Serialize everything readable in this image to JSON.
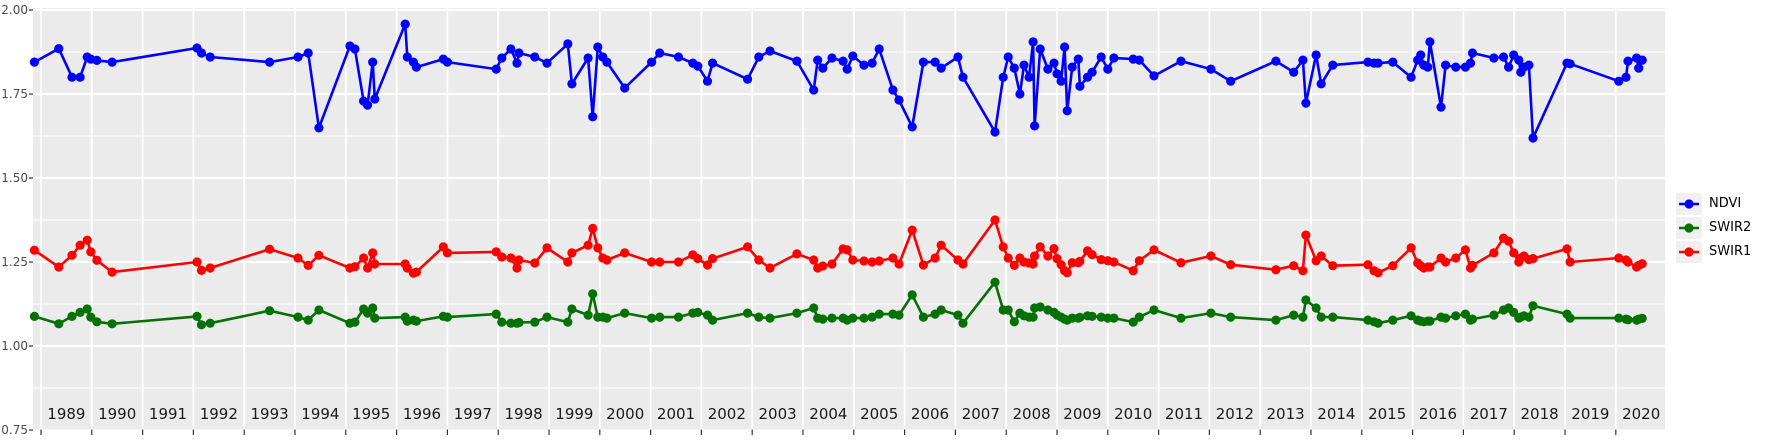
{
  "chart_data": {
    "type": "line",
    "title": "",
    "xlabel": "",
    "ylabel": "",
    "grid": "on",
    "panel_background": "#ebebeb",
    "gridline_color": "#ffffff",
    "legend_position": "right",
    "y_axis": {
      "tick_labels": [
        "2.00",
        "1.75",
        "1.50",
        "1.25",
        "1.00",
        "0.75"
      ],
      "tick_values": [
        2.0,
        1.75,
        1.5,
        1.25,
        1.0,
        0.75
      ],
      "minor_tick_values": [
        1.875,
        1.625,
        1.375,
        1.125,
        0.875
      ],
      "range": [
        0.75,
        2.0
      ]
    },
    "x_axis": {
      "year_labels": [
        "1989",
        "1990",
        "1991",
        "1992",
        "1993",
        "1994",
        "1995",
        "1996",
        "1997",
        "1998",
        "1999",
        "2000",
        "2001",
        "2002",
        "2003",
        "2004",
        "2005",
        "2006",
        "2007",
        "2008",
        "2009",
        "2010",
        "2011",
        "2012",
        "2013",
        "2014",
        "2015",
        "2016",
        "2017",
        "2018",
        "2019",
        "2020"
      ],
      "range": [
        1988.8,
        2021.0
      ]
    },
    "legend": [
      {
        "name": "NDVI",
        "color": "#0000ff"
      },
      {
        "name": "SWIR2",
        "color": "#047104"
      },
      {
        "name": "SWIR1",
        "color": "#ff0000"
      }
    ],
    "x": [
      1988.87,
      1989.35,
      1989.61,
      1989.77,
      1989.91,
      1989.98,
      1990.1,
      1990.4,
      1992.07,
      1992.16,
      1992.33,
      1993.5,
      1994.06,
      1994.26,
      1994.47,
      1995.08,
      1995.18,
      1995.35,
      1995.43,
      1995.53,
      1995.57,
      1996.17,
      1996.21,
      1996.33,
      1996.39,
      1996.92,
      1997.0,
      1997.96,
      1998.07,
      1998.25,
      1998.37,
      1998.41,
      1998.72,
      1998.96,
      1999.37,
      1999.45,
      1999.77,
      1999.86,
      1999.96,
      2000.06,
      2000.14,
      2000.49,
      2001.02,
      2001.18,
      2001.55,
      2001.83,
      2001.93,
      2002.12,
      2002.22,
      2002.91,
      2003.13,
      2003.35,
      2003.88,
      2004.21,
      2004.29,
      2004.39,
      2004.57,
      2004.79,
      2004.87,
      2004.98,
      2005.2,
      2005.36,
      2005.5,
      2005.77,
      2005.89,
      2006.15,
      2006.37,
      2006.6,
      2006.72,
      2007.05,
      2007.15,
      2007.78,
      2007.94,
      2008.04,
      2008.16,
      2008.27,
      2008.35,
      2008.45,
      2008.53,
      2008.56,
      2008.67,
      2008.82,
      2008.94,
      2009.0,
      2009.08,
      2009.15,
      2009.2,
      2009.3,
      2009.42,
      2009.45,
      2009.6,
      2009.69,
      2009.87,
      2010.0,
      2010.12,
      2010.5,
      2010.62,
      2010.91,
      2011.44,
      2012.03,
      2012.42,
      2013.31,
      2013.66,
      2013.84,
      2013.9,
      2014.1,
      2014.2,
      2014.43,
      2015.12,
      2015.24,
      2015.32,
      2015.61,
      2015.97,
      2016.1,
      2016.16,
      2016.22,
      2016.3,
      2016.34,
      2016.56,
      2016.65,
      2016.85,
      2017.04,
      2017.14,
      2017.18,
      2017.6,
      2017.79,
      2017.89,
      2017.99,
      2018.09,
      2018.13,
      2018.19,
      2018.29,
      2018.37,
      2019.04,
      2019.1,
      2020.06,
      2020.2,
      2020.24,
      2020.41,
      2020.45,
      2020.52
    ],
    "series": [
      {
        "name": "NDVI",
        "color": "#0000ff",
        "values": [
          1.845,
          1.885,
          1.8,
          1.8,
          1.86,
          1.854,
          1.85,
          1.845,
          1.887,
          1.872,
          1.86,
          1.845,
          1.86,
          1.872,
          1.649,
          1.893,
          1.884,
          1.729,
          1.717,
          1.845,
          1.735,
          1.958,
          1.86,
          1.845,
          1.83,
          1.854,
          1.845,
          1.824,
          1.857,
          1.884,
          1.842,
          1.872,
          1.86,
          1.842,
          1.899,
          1.78,
          1.857,
          1.682,
          1.89,
          1.86,
          1.845,
          1.768,
          1.845,
          1.872,
          1.86,
          1.842,
          1.833,
          1.788,
          1.842,
          1.794,
          1.86,
          1.878,
          1.848,
          1.762,
          1.851,
          1.827,
          1.857,
          1.848,
          1.824,
          1.863,
          1.836,
          1.842,
          1.884,
          1.762,
          1.732,
          1.652,
          1.845,
          1.845,
          1.827,
          1.86,
          1.8,
          1.637,
          1.8,
          1.86,
          1.827,
          1.75,
          1.836,
          1.8,
          1.905,
          1.655,
          1.884,
          1.824,
          1.842,
          1.81,
          1.788,
          1.89,
          1.7,
          1.83,
          1.854,
          1.773,
          1.8,
          1.815,
          1.86,
          1.824,
          1.857,
          1.854,
          1.851,
          1.804,
          1.848,
          1.824,
          1.788,
          1.848,
          1.815,
          1.851,
          1.723,
          1.866,
          1.78,
          1.836,
          1.845,
          1.842,
          1.842,
          1.845,
          1.8,
          1.851,
          1.866,
          1.836,
          1.83,
          1.905,
          1.711,
          1.836,
          1.83,
          1.83,
          1.842,
          1.872,
          1.857,
          1.86,
          1.83,
          1.866,
          1.851,
          1.815,
          1.83,
          1.836,
          1.619,
          1.842,
          1.84,
          1.788,
          1.8,
          1.848,
          1.857,
          1.827,
          1.851
        ]
      },
      {
        "name": "SWIR2",
        "color": "#047104",
        "values": [
          1.088,
          1.066,
          1.088,
          1.1,
          1.11,
          1.086,
          1.072,
          1.066,
          1.088,
          1.063,
          1.068,
          1.105,
          1.086,
          1.077,
          1.107,
          1.068,
          1.071,
          1.11,
          1.098,
          1.113,
          1.083,
          1.086,
          1.074,
          1.077,
          1.074,
          1.088,
          1.086,
          1.095,
          1.071,
          1.068,
          1.068,
          1.07,
          1.071,
          1.086,
          1.071,
          1.11,
          1.092,
          1.155,
          1.086,
          1.086,
          1.083,
          1.098,
          1.083,
          1.086,
          1.086,
          1.098,
          1.1,
          1.092,
          1.077,
          1.098,
          1.086,
          1.083,
          1.098,
          1.113,
          1.083,
          1.08,
          1.083,
          1.083,
          1.077,
          1.083,
          1.083,
          1.086,
          1.095,
          1.095,
          1.092,
          1.152,
          1.086,
          1.095,
          1.107,
          1.092,
          1.068,
          1.19,
          1.107,
          1.107,
          1.072,
          1.098,
          1.09,
          1.086,
          1.086,
          1.113,
          1.116,
          1.107,
          1.1,
          1.092,
          1.086,
          1.08,
          1.077,
          1.083,
          1.083,
          1.085,
          1.09,
          1.088,
          1.086,
          1.083,
          1.083,
          1.071,
          1.086,
          1.107,
          1.083,
          1.098,
          1.086,
          1.077,
          1.092,
          1.086,
          1.137,
          1.113,
          1.086,
          1.086,
          1.077,
          1.072,
          1.068,
          1.077,
          1.09,
          1.077,
          1.074,
          1.072,
          1.074,
          1.074,
          1.086,
          1.083,
          1.09,
          1.095,
          1.077,
          1.08,
          1.092,
          1.107,
          1.113,
          1.1,
          1.083,
          1.086,
          1.09,
          1.086,
          1.12,
          1.095,
          1.083,
          1.083,
          1.08,
          1.078,
          1.077,
          1.08,
          1.082
        ]
      },
      {
        "name": "SWIR1",
        "color": "#ff0000",
        "values": [
          1.285,
          1.235,
          1.27,
          1.3,
          1.315,
          1.28,
          1.255,
          1.22,
          1.25,
          1.225,
          1.232,
          1.288,
          1.262,
          1.24,
          1.27,
          1.232,
          1.236,
          1.262,
          1.232,
          1.277,
          1.244,
          1.244,
          1.232,
          1.217,
          1.22,
          1.295,
          1.277,
          1.28,
          1.265,
          1.262,
          1.232,
          1.256,
          1.247,
          1.292,
          1.25,
          1.277,
          1.3,
          1.35,
          1.292,
          1.262,
          1.256,
          1.277,
          1.25,
          1.25,
          1.25,
          1.271,
          1.26,
          1.241,
          1.26,
          1.295,
          1.256,
          1.232,
          1.274,
          1.256,
          1.232,
          1.238,
          1.244,
          1.289,
          1.286,
          1.256,
          1.253,
          1.25,
          1.253,
          1.262,
          1.244,
          1.345,
          1.241,
          1.262,
          1.3,
          1.256,
          1.244,
          1.375,
          1.295,
          1.262,
          1.24,
          1.262,
          1.25,
          1.247,
          1.244,
          1.268,
          1.295,
          1.268,
          1.29,
          1.26,
          1.242,
          1.224,
          1.218,
          1.248,
          1.248,
          1.252,
          1.283,
          1.272,
          1.257,
          1.254,
          1.25,
          1.224,
          1.254,
          1.286,
          1.248,
          1.268,
          1.242,
          1.227,
          1.239,
          1.224,
          1.33,
          1.254,
          1.268,
          1.239,
          1.242,
          1.224,
          1.218,
          1.239,
          1.292,
          1.247,
          1.239,
          1.232,
          1.235,
          1.235,
          1.262,
          1.25,
          1.262,
          1.286,
          1.232,
          1.24,
          1.277,
          1.321,
          1.312,
          1.277,
          1.25,
          1.262,
          1.268,
          1.257,
          1.26,
          1.289,
          1.25,
          1.262,
          1.256,
          1.25,
          1.235,
          1.24,
          1.245
        ]
      }
    ]
  }
}
